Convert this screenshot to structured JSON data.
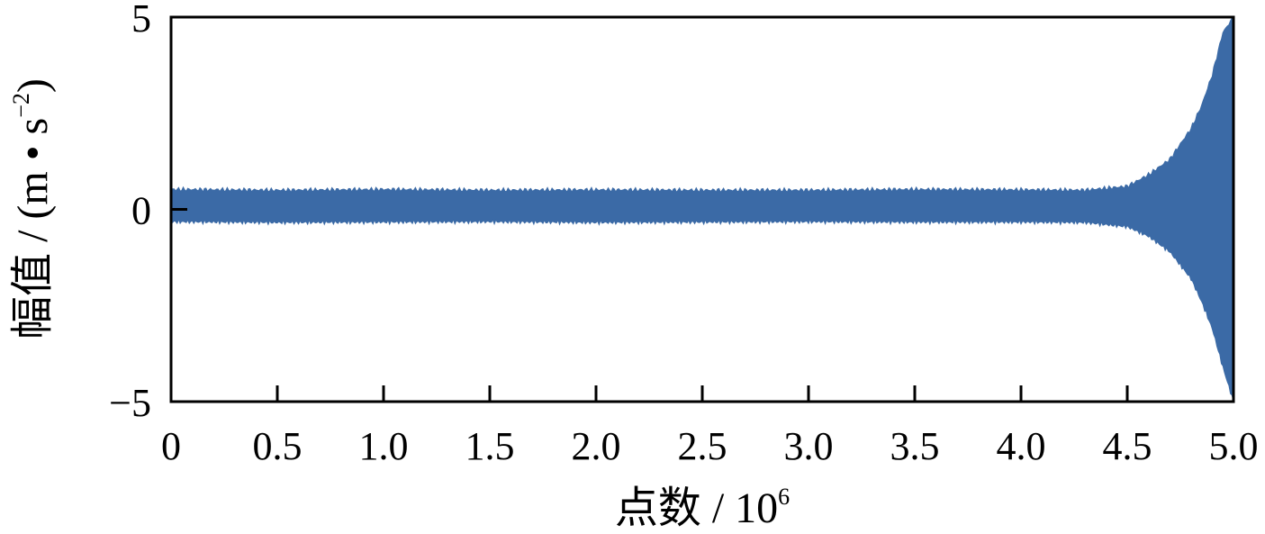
{
  "chart_data": {
    "type": "line",
    "title": "",
    "xlabel": {
      "main": "点数 / 10",
      "superscript": "6"
    },
    "ylabel": {
      "main": "幅值 / (m • s",
      "superscript": "−2",
      "suffix": ")"
    },
    "xlim": [
      0,
      5.0
    ],
    "ylim": [
      -5,
      5
    ],
    "x_ticks": [
      "0",
      "0.5",
      "1.0",
      "1.5",
      "2.0",
      "2.5",
      "3.0",
      "3.5",
      "4.0",
      "4.5",
      "5.0"
    ],
    "y_ticks": [
      "−5",
      "0",
      "5"
    ],
    "grid": false,
    "legend": "none",
    "series": [
      {
        "color": "#3b6aa6",
        "x": [
          0,
          0.5,
          1.0,
          1.5,
          2.0,
          2.5,
          3.0,
          3.5,
          4.0,
          4.3,
          4.5,
          4.6,
          4.7,
          4.8,
          4.85,
          4.9,
          4.95,
          5.0
        ],
        "upper": [
          0.52,
          0.5,
          0.52,
          0.5,
          0.51,
          0.5,
          0.5,
          0.52,
          0.51,
          0.5,
          0.6,
          0.9,
          1.3,
          2.1,
          2.7,
          3.5,
          4.6,
          5.0
        ],
        "lower": [
          -0.32,
          -0.34,
          -0.33,
          -0.32,
          -0.34,
          -0.33,
          -0.32,
          -0.33,
          -0.33,
          -0.34,
          -0.45,
          -0.7,
          -1.1,
          -1.8,
          -2.4,
          -3.1,
          -4.1,
          -5.0
        ]
      }
    ]
  }
}
